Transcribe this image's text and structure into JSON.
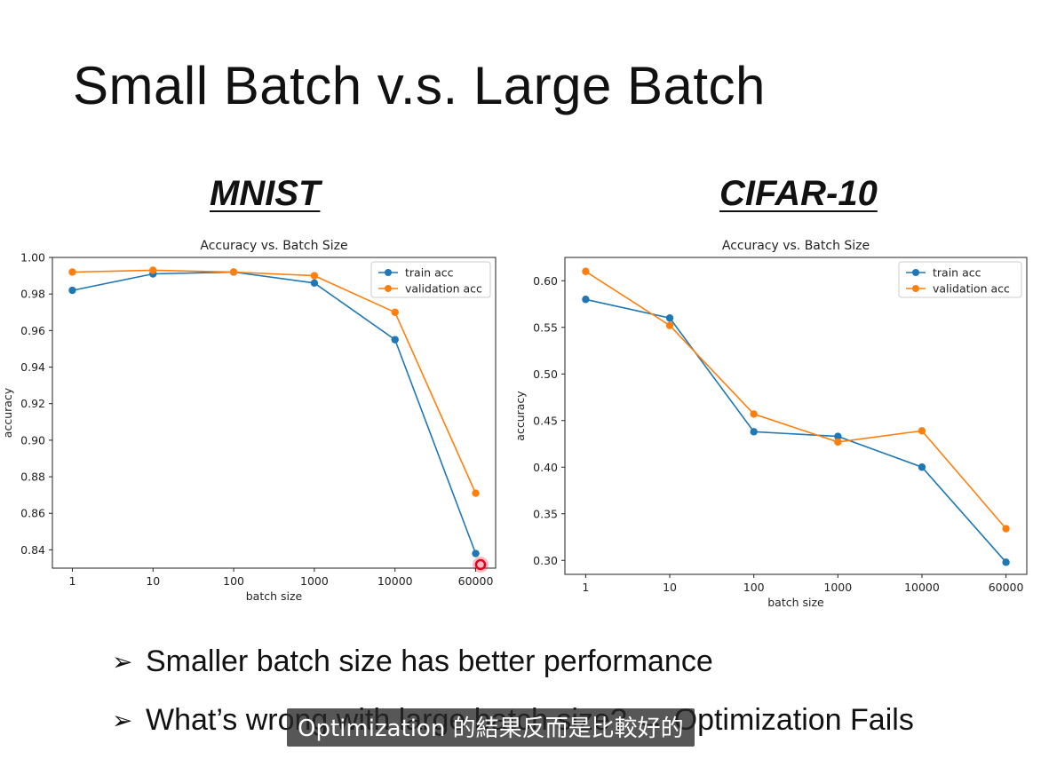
{
  "slide": {
    "title": "Small Batch v.s. Large Batch",
    "bullets": [
      "Smaller batch size has better performance",
      "What’s wrong with large batch size? → Optimization Fails"
    ]
  },
  "subtitle": "Optimization 的結果反而是比較好的",
  "colors": {
    "train": "#1f77b4",
    "validation": "#ff7f0e",
    "cursor": "#e8001c"
  },
  "chart_data": [
    {
      "dataset_label": "MNIST",
      "type": "line",
      "title": "Accuracy vs. Batch Size",
      "xlabel": "batch size",
      "ylabel": "accuracy",
      "categories": [
        "1",
        "10",
        "100",
        "1000",
        "10000",
        "60000"
      ],
      "ylim": [
        0.83,
        1.0
      ],
      "yticks": [
        0.84,
        0.86,
        0.88,
        0.9,
        0.92,
        0.94,
        0.96,
        0.98,
        1.0
      ],
      "ytick_labels": [
        "0.84",
        "0.86",
        "0.88",
        "0.90",
        "0.92",
        "0.94",
        "0.96",
        "0.98",
        "1.00"
      ],
      "legend_position": "top-right",
      "grid": false,
      "series": [
        {
          "name": "train acc",
          "values": [
            0.982,
            0.991,
            0.992,
            0.986,
            0.955,
            0.838
          ]
        },
        {
          "name": "validation acc",
          "values": [
            0.992,
            0.993,
            0.992,
            0.99,
            0.97,
            0.871
          ]
        }
      ]
    },
    {
      "dataset_label": "CIFAR-10",
      "type": "line",
      "title": "Accuracy vs. Batch Size",
      "xlabel": "batch size",
      "ylabel": "accuracy",
      "categories": [
        "1",
        "10",
        "100",
        "1000",
        "10000",
        "60000"
      ],
      "ylim": [
        0.285,
        0.625
      ],
      "yticks": [
        0.3,
        0.35,
        0.4,
        0.45,
        0.5,
        0.55,
        0.6
      ],
      "ytick_labels": [
        "0.30",
        "0.35",
        "0.40",
        "0.45",
        "0.50",
        "0.55",
        "0.60"
      ],
      "legend_position": "top-right",
      "grid": false,
      "series": [
        {
          "name": "train acc",
          "values": [
            0.58,
            0.56,
            0.438,
            0.433,
            0.4,
            0.298
          ]
        },
        {
          "name": "validation acc",
          "values": [
            0.61,
            0.552,
            0.457,
            0.427,
            0.439,
            0.334
          ]
        }
      ]
    }
  ]
}
